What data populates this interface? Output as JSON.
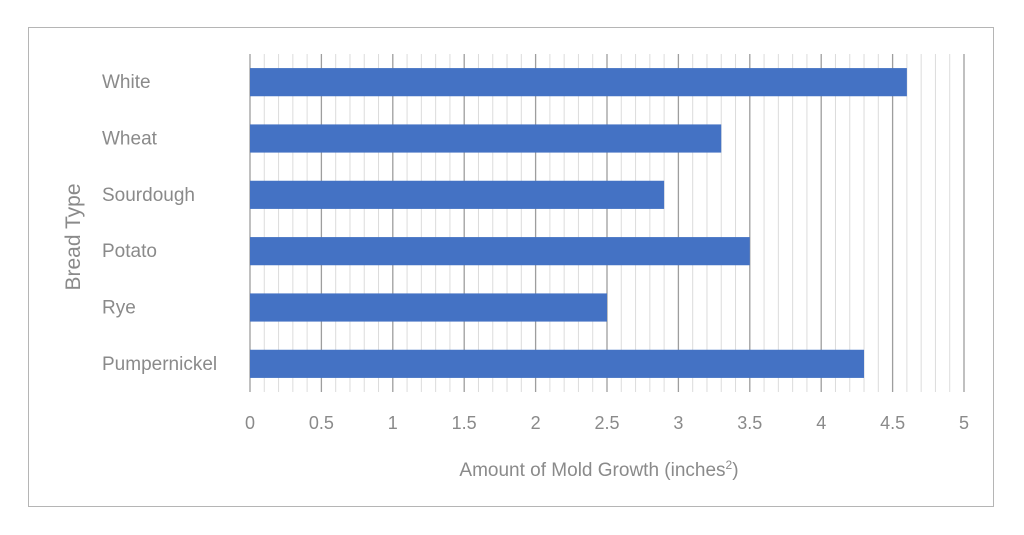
{
  "chart_data": {
    "type": "bar",
    "orientation": "horizontal",
    "categories": [
      "White",
      "Wheat",
      "Sourdough",
      "Potato",
      "Rye",
      "Pumpernickel"
    ],
    "values": [
      4.6,
      3.3,
      2.9,
      3.5,
      2.5,
      4.3
    ],
    "title": "",
    "xlabel": "Amount of Mold Growth (inches",
    "xlabel_superscript": "2",
    "xlabel_suffix": ")",
    "ylabel": "Bread Type",
    "xlim": [
      0,
      5
    ],
    "major_ticks": [
      0,
      0.5,
      1,
      1.5,
      2,
      2.5,
      3,
      3.5,
      4,
      4.5,
      5
    ],
    "tick_labels": [
      "0",
      "0.5",
      "1",
      "1.5",
      "2",
      "2.5",
      "3",
      "3.5",
      "4",
      "4.5",
      "5"
    ],
    "minor_step": 0.1,
    "grid": true,
    "legend": "none",
    "colors": {
      "bar": "#4472c4",
      "major_grid": "#9e9e9e",
      "minor_grid": "#dcdcdc",
      "text": "#8a8a8a"
    }
  }
}
